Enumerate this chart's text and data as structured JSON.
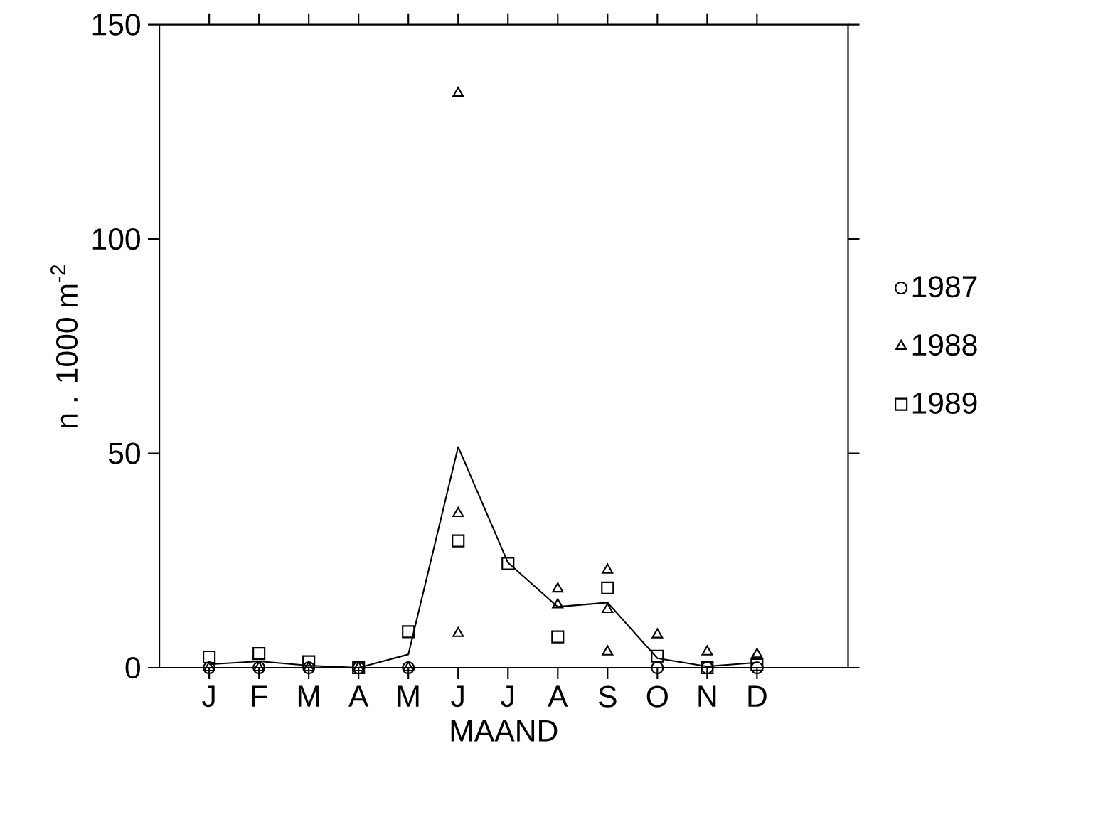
{
  "chart_data": {
    "type": "scatter",
    "xlabel": "MAAND",
    "ylabel": "n . 1000 m$^{-2}$",
    "categories": [
      "J",
      "F",
      "M",
      "A",
      "M",
      "J",
      "J",
      "A",
      "S",
      "O",
      "N",
      "D"
    ],
    "ylim": [
      0,
      150
    ],
    "yticks": [
      0,
      50,
      100,
      150
    ],
    "legend": "right",
    "series": [
      {
        "name": "1987",
        "color": "#000000",
        "marker": "circle",
        "values": [
          0,
          0,
          0,
          0,
          0,
          null,
          null,
          null,
          null,
          0,
          0,
          0
        ]
      },
      {
        "name": "1988",
        "color": "#000000",
        "marker": "triangle",
        "values": [
          0,
          0,
          0,
          0,
          0,
          134,
          null,
          18.4,
          22.8,
          7.7,
          3.7,
          3.1
        ]
      },
      {
        "color": "#000000",
        "marker": "triangle",
        "values": [
          null,
          null,
          null,
          null,
          null,
          36,
          null,
          14.7,
          13.6,
          null,
          null,
          null
        ]
      },
      {
        "color": "#000000",
        "marker": "triangle",
        "values": [
          null,
          null,
          null,
          null,
          null,
          8,
          null,
          null,
          3.7,
          null,
          null,
          null
        ]
      },
      {
        "name": "1989",
        "color": "#000000",
        "marker": "square",
        "values": [
          2.5,
          3.3,
          1.4,
          0,
          8.4,
          29.6,
          24.3,
          7.2,
          18.6,
          2.7,
          0,
          0.7
        ]
      },
      {
        "type": "line",
        "color": "#000000",
        "marker": "none",
        "line_style": "solid",
        "values": [
          0.8,
          1.5,
          0.5,
          0,
          3.1,
          51.5,
          24.5,
          14.2,
          15.2,
          2.2,
          0.3,
          1.2
        ]
      }
    ]
  }
}
